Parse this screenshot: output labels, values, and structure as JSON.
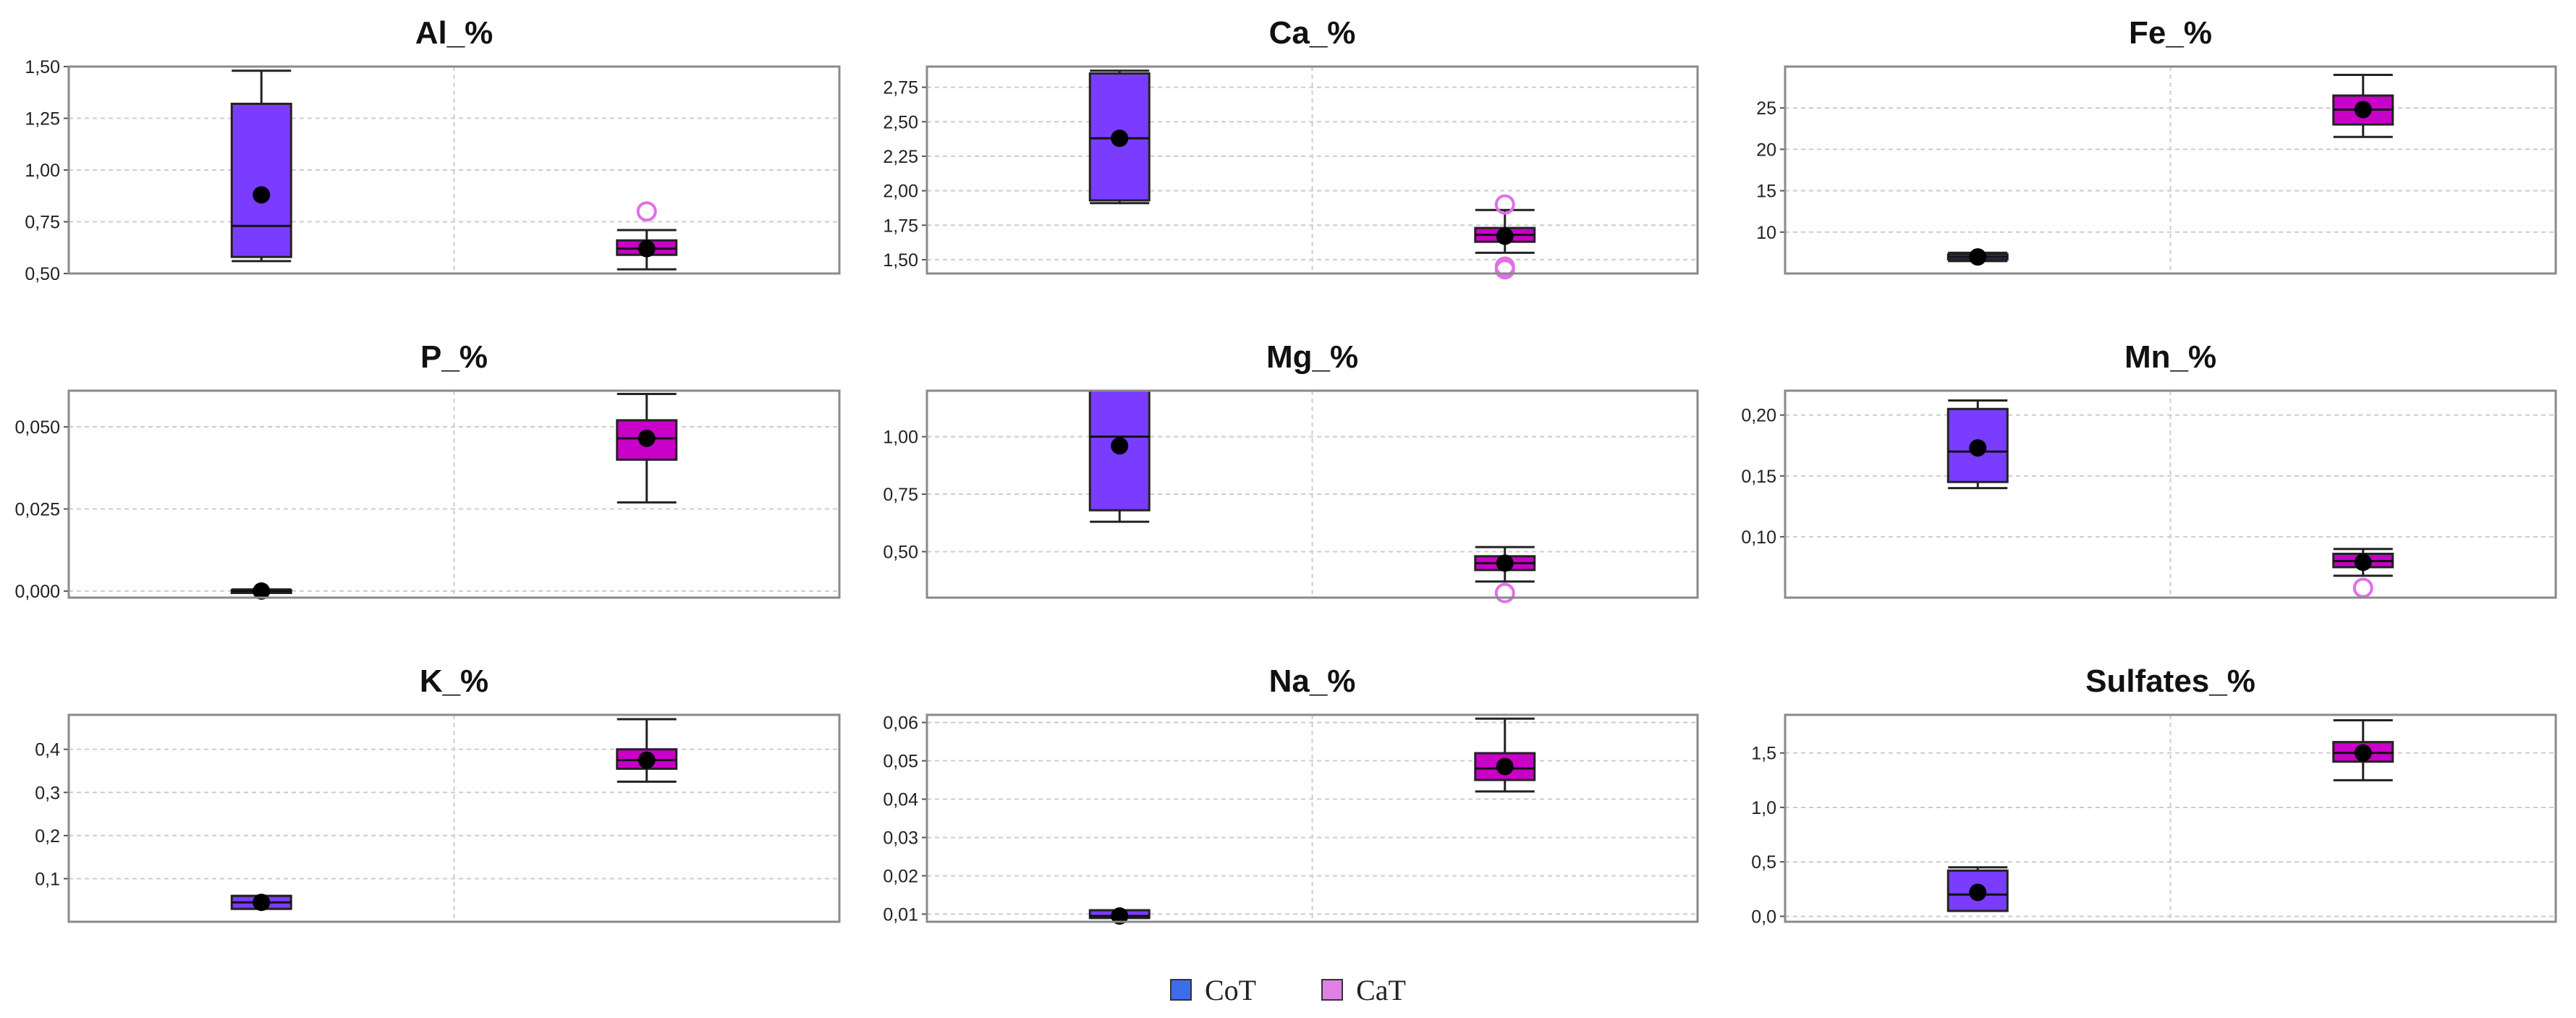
{
  "chart_data": [
    {
      "type": "box",
      "title": "Al_%",
      "ylim": [
        0.5,
        1.5
      ],
      "yticks": [
        0.5,
        0.75,
        1.0,
        1.25,
        1.5
      ],
      "yticklabels": [
        "0,50",
        "0,75",
        "1,00",
        "1,25",
        "1,50"
      ],
      "series": [
        {
          "name": "CoT",
          "whisker_low": 0.56,
          "q1": 0.58,
          "median": 0.73,
          "q3": 1.32,
          "whisker_high": 1.48,
          "mean": 0.88,
          "outliers": []
        },
        {
          "name": "CaT",
          "whisker_low": 0.52,
          "q1": 0.59,
          "median": 0.62,
          "q3": 0.66,
          "whisker_high": 0.71,
          "mean": 0.62,
          "outliers": [
            0.8
          ]
        }
      ]
    },
    {
      "type": "box",
      "title": "Ca_%",
      "ylim": [
        1.4,
        2.9
      ],
      "yticks": [
        1.5,
        1.75,
        2.0,
        2.25,
        2.5,
        2.75
      ],
      "yticklabels": [
        "1,50",
        "1,75",
        "2,00",
        "2,25",
        "2,50",
        "2,75"
      ],
      "series": [
        {
          "name": "CoT",
          "whisker_low": 1.91,
          "q1": 1.93,
          "median": 2.38,
          "q3": 2.85,
          "whisker_high": 2.87,
          "mean": 2.38,
          "outliers": []
        },
        {
          "name": "CaT",
          "whisker_low": 1.55,
          "q1": 1.63,
          "median": 1.68,
          "q3": 1.73,
          "whisker_high": 1.86,
          "mean": 1.67,
          "outliers": [
            1.9,
            1.45,
            1.43
          ]
        }
      ]
    },
    {
      "type": "box",
      "title": "Fe_%",
      "ylim": [
        5,
        30
      ],
      "yticks": [
        10,
        15,
        20,
        25
      ],
      "yticklabels": [
        "10",
        "15",
        "20",
        "25"
      ],
      "series": [
        {
          "name": "CoT",
          "whisker_low": 6.5,
          "q1": 6.7,
          "median": 7.0,
          "q3": 7.3,
          "whisker_high": 7.5,
          "mean": 7.0,
          "outliers": []
        },
        {
          "name": "CaT",
          "whisker_low": 21.5,
          "q1": 23,
          "median": 24.8,
          "q3": 26.5,
          "whisker_high": 29,
          "mean": 24.8,
          "outliers": []
        }
      ]
    },
    {
      "type": "box",
      "title": "P_%",
      "ylim": [
        -0.002,
        0.061
      ],
      "yticks": [
        0.0,
        0.025,
        0.05
      ],
      "yticklabels": [
        "0,000",
        "0,025",
        "0,050"
      ],
      "series": [
        {
          "name": "CoT",
          "whisker_low": -0.0005,
          "q1": -0.0003,
          "median": 0.0,
          "q3": 0.0003,
          "whisker_high": 0.0005,
          "mean": 0.0,
          "outliers": []
        },
        {
          "name": "CaT",
          "whisker_low": 0.027,
          "q1": 0.04,
          "median": 0.0465,
          "q3": 0.052,
          "whisker_high": 0.06,
          "mean": 0.0465,
          "outliers": []
        }
      ]
    },
    {
      "type": "box",
      "title": "Mg_%",
      "ylim": [
        0.3,
        1.2
      ],
      "yticks": [
        0.5,
        0.75,
        1.0
      ],
      "yticklabels": [
        "0,50",
        "0,75",
        "1,00"
      ],
      "series": [
        {
          "name": "CoT",
          "whisker_low": 0.63,
          "q1": 0.68,
          "median": 1.0,
          "q3": 1.2,
          "whisker_high": 1.2,
          "mean": 0.96,
          "outliers": []
        },
        {
          "name": "CaT",
          "whisker_low": 0.37,
          "q1": 0.42,
          "median": 0.45,
          "q3": 0.48,
          "whisker_high": 0.52,
          "mean": 0.45,
          "outliers": [
            0.32
          ]
        }
      ]
    },
    {
      "type": "box",
      "title": "Mn_%",
      "ylim": [
        0.05,
        0.22
      ],
      "yticks": [
        0.1,
        0.15,
        0.2
      ],
      "yticklabels": [
        "0,10",
        "0,15",
        "0,20"
      ],
      "series": [
        {
          "name": "CoT",
          "whisker_low": 0.14,
          "q1": 0.145,
          "median": 0.17,
          "q3": 0.205,
          "whisker_high": 0.212,
          "mean": 0.173,
          "outliers": []
        },
        {
          "name": "CaT",
          "whisker_low": 0.068,
          "q1": 0.075,
          "median": 0.08,
          "q3": 0.086,
          "whisker_high": 0.09,
          "mean": 0.079,
          "outliers": [
            0.058
          ]
        }
      ]
    },
    {
      "type": "box",
      "title": "K_%",
      "ylim": [
        0.0,
        0.48
      ],
      "yticks": [
        0.1,
        0.2,
        0.3,
        0.4
      ],
      "yticklabels": [
        "0,1",
        "0,2",
        "0,3",
        "0,4"
      ],
      "series": [
        {
          "name": "CoT",
          "whisker_low": 0.03,
          "q1": 0.03,
          "median": 0.045,
          "q3": 0.06,
          "whisker_high": 0.06,
          "mean": 0.045,
          "outliers": []
        },
        {
          "name": "CaT",
          "whisker_low": 0.325,
          "q1": 0.355,
          "median": 0.375,
          "q3": 0.4,
          "whisker_high": 0.47,
          "mean": 0.375,
          "outliers": []
        }
      ]
    },
    {
      "type": "box",
      "title": "Na_%",
      "ylim": [
        0.008,
        0.062
      ],
      "yticks": [
        0.01,
        0.02,
        0.03,
        0.04,
        0.05,
        0.06
      ],
      "yticklabels": [
        "0,01",
        "0,02",
        "0,03",
        "0,04",
        "0,05",
        "0,06"
      ],
      "series": [
        {
          "name": "CoT",
          "whisker_low": 0.009,
          "q1": 0.009,
          "median": 0.0095,
          "q3": 0.011,
          "whisker_high": 0.011,
          "mean": 0.0095,
          "outliers": []
        },
        {
          "name": "CaT",
          "whisker_low": 0.042,
          "q1": 0.045,
          "median": 0.048,
          "q3": 0.052,
          "whisker_high": 0.061,
          "mean": 0.0485,
          "outliers": []
        }
      ]
    },
    {
      "type": "box",
      "title": "Sulfates_%",
      "ylim": [
        -0.05,
        1.85
      ],
      "yticks": [
        0.0,
        0.5,
        1.0,
        1.5
      ],
      "yticklabels": [
        "0,0",
        "0,5",
        "1,0",
        "1,5"
      ],
      "series": [
        {
          "name": "CoT",
          "whisker_low": 0.05,
          "q1": 0.05,
          "median": 0.2,
          "q3": 0.42,
          "whisker_high": 0.45,
          "mean": 0.22,
          "outliers": []
        },
        {
          "name": "CaT",
          "whisker_low": 1.25,
          "q1": 1.42,
          "median": 1.5,
          "q3": 1.6,
          "whisker_high": 1.8,
          "mean": 1.5,
          "outliers": []
        }
      ]
    }
  ],
  "legend": {
    "items": [
      {
        "label": "CoT",
        "color": "#3d6dea"
      },
      {
        "label": "CaT",
        "color": "#e07fe6"
      }
    ]
  },
  "colors": {
    "CoT_box": "#7a3cff",
    "CaT_box": "#c800c8",
    "CaT_outlier": "#e070e6",
    "frame": "#8a8a8a",
    "grid": "#cccccc",
    "mean_dot": "#000000"
  }
}
